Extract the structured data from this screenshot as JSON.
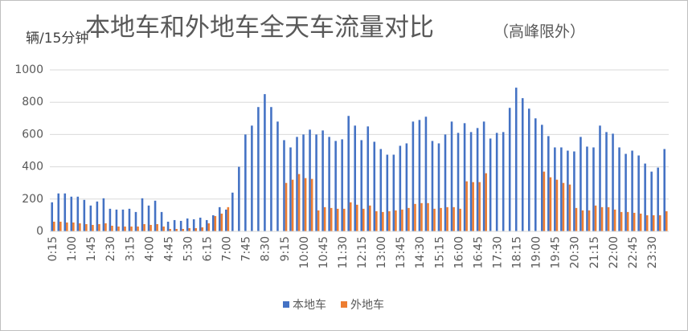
{
  "chart_data": {
    "type": "bar",
    "title": "本地车和外地车全天车流量对比",
    "subtitle": "（高峰限外）",
    "y_label": "辆/15分钟",
    "categories": [
      "0:15",
      null,
      null,
      "1:00",
      null,
      null,
      "1:45",
      null,
      null,
      "2:30",
      null,
      null,
      "3:15",
      null,
      null,
      "4:00",
      null,
      null,
      "4:45",
      null,
      null,
      "5:30",
      null,
      null,
      "6:15",
      null,
      null,
      "7:00",
      null,
      null,
      "7:45",
      null,
      null,
      "8:30",
      null,
      null,
      "9:15",
      null,
      null,
      "10:00",
      null,
      null,
      "10:45",
      null,
      null,
      "11:30",
      null,
      null,
      "12:15",
      null,
      null,
      "13:00",
      null,
      null,
      "13:45",
      null,
      null,
      "14:30",
      null,
      null,
      "15:15",
      null,
      null,
      "16:00",
      null,
      null,
      "16:45",
      null,
      null,
      "17:30",
      null,
      null,
      "18:15",
      null,
      null,
      "19:00",
      null,
      null,
      "19:45",
      null,
      null,
      "20:30",
      null,
      null,
      "21:15",
      null,
      null,
      "22:00",
      null,
      null,
      "22:45",
      null,
      null,
      "23:30",
      null,
      null
    ],
    "series": [
      {
        "name": "本地车",
        "color": "#4472c4",
        "values": [
          180,
          235,
          235,
          215,
          215,
          195,
          160,
          185,
          205,
          140,
          135,
          135,
          140,
          120,
          205,
          160,
          190,
          120,
          60,
          70,
          65,
          80,
          75,
          85,
          70,
          100,
          150,
          135,
          240,
          400,
          600,
          655,
          770,
          850,
          770,
          680,
          565,
          520,
          585,
          600,
          630,
          600,
          625,
          585,
          560,
          570,
          715,
          655,
          565,
          650,
          555,
          510,
          475,
          475,
          530,
          545,
          680,
          690,
          710,
          560,
          545,
          600,
          680,
          610,
          670,
          615,
          640,
          680,
          575,
          610,
          615,
          765,
          890,
          825,
          760,
          700,
          660,
          590,
          520,
          520,
          500,
          495,
          585,
          525,
          520,
          655,
          615,
          605,
          520,
          480,
          500,
          470,
          420,
          370,
          395,
          510
        ]
      },
      {
        "name": "外地车",
        "color": "#ed7d31",
        "values": [
          60,
          60,
          55,
          55,
          50,
          45,
          40,
          45,
          50,
          35,
          30,
          30,
          30,
          30,
          45,
          40,
          45,
          30,
          15,
          15,
          15,
          20,
          20,
          25,
          50,
          95,
          110,
          150,
          0,
          0,
          0,
          0,
          0,
          0,
          0,
          0,
          300,
          320,
          355,
          330,
          325,
          130,
          150,
          145,
          140,
          140,
          180,
          165,
          140,
          160,
          125,
          120,
          125,
          130,
          135,
          145,
          170,
          175,
          175,
          140,
          145,
          150,
          150,
          140,
          310,
          305,
          305,
          360,
          0,
          0,
          0,
          0,
          0,
          0,
          0,
          0,
          370,
          335,
          320,
          300,
          290,
          145,
          130,
          130,
          160,
          150,
          150,
          135,
          120,
          120,
          115,
          110,
          100,
          100,
          100,
          125
        ]
      }
    ],
    "ylim": [
      0,
      1000
    ],
    "yticks": [
      0,
      200,
      400,
      600,
      800,
      1000
    ],
    "grid": true,
    "legend": "bottom"
  }
}
